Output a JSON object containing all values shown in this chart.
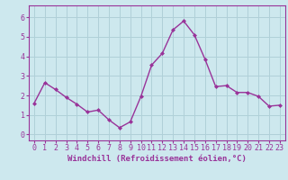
{
  "x": [
    0,
    1,
    2,
    3,
    4,
    5,
    6,
    7,
    8,
    9,
    10,
    11,
    12,
    13,
    14,
    15,
    16,
    17,
    18,
    19,
    20,
    21,
    22,
    23
  ],
  "y": [
    1.6,
    2.65,
    2.3,
    1.9,
    1.55,
    1.15,
    1.25,
    0.75,
    0.35,
    0.65,
    1.95,
    3.55,
    4.15,
    5.35,
    5.8,
    5.1,
    3.85,
    2.45,
    2.5,
    2.15,
    2.15,
    1.95,
    1.45,
    1.5
  ],
  "line_color": "#993399",
  "marker": "D",
  "marker_size": 2,
  "line_width": 1.0,
  "xlabel": "Windchill (Refroidissement éolien,°C)",
  "xlim": [
    -0.5,
    23.5
  ],
  "ylim": [
    -0.3,
    6.6
  ],
  "yticks": [
    0,
    1,
    2,
    3,
    4,
    5,
    6
  ],
  "xticks": [
    0,
    1,
    2,
    3,
    4,
    5,
    6,
    7,
    8,
    9,
    10,
    11,
    12,
    13,
    14,
    15,
    16,
    17,
    18,
    19,
    20,
    21,
    22,
    23
  ],
  "bg_color": "#cde8ee",
  "grid_color": "#b0d0d8",
  "tick_label_color": "#993399",
  "xlabel_color": "#993399",
  "axis_label_fontsize": 6.5,
  "tick_fontsize": 6.0,
  "spine_color": "#993399"
}
